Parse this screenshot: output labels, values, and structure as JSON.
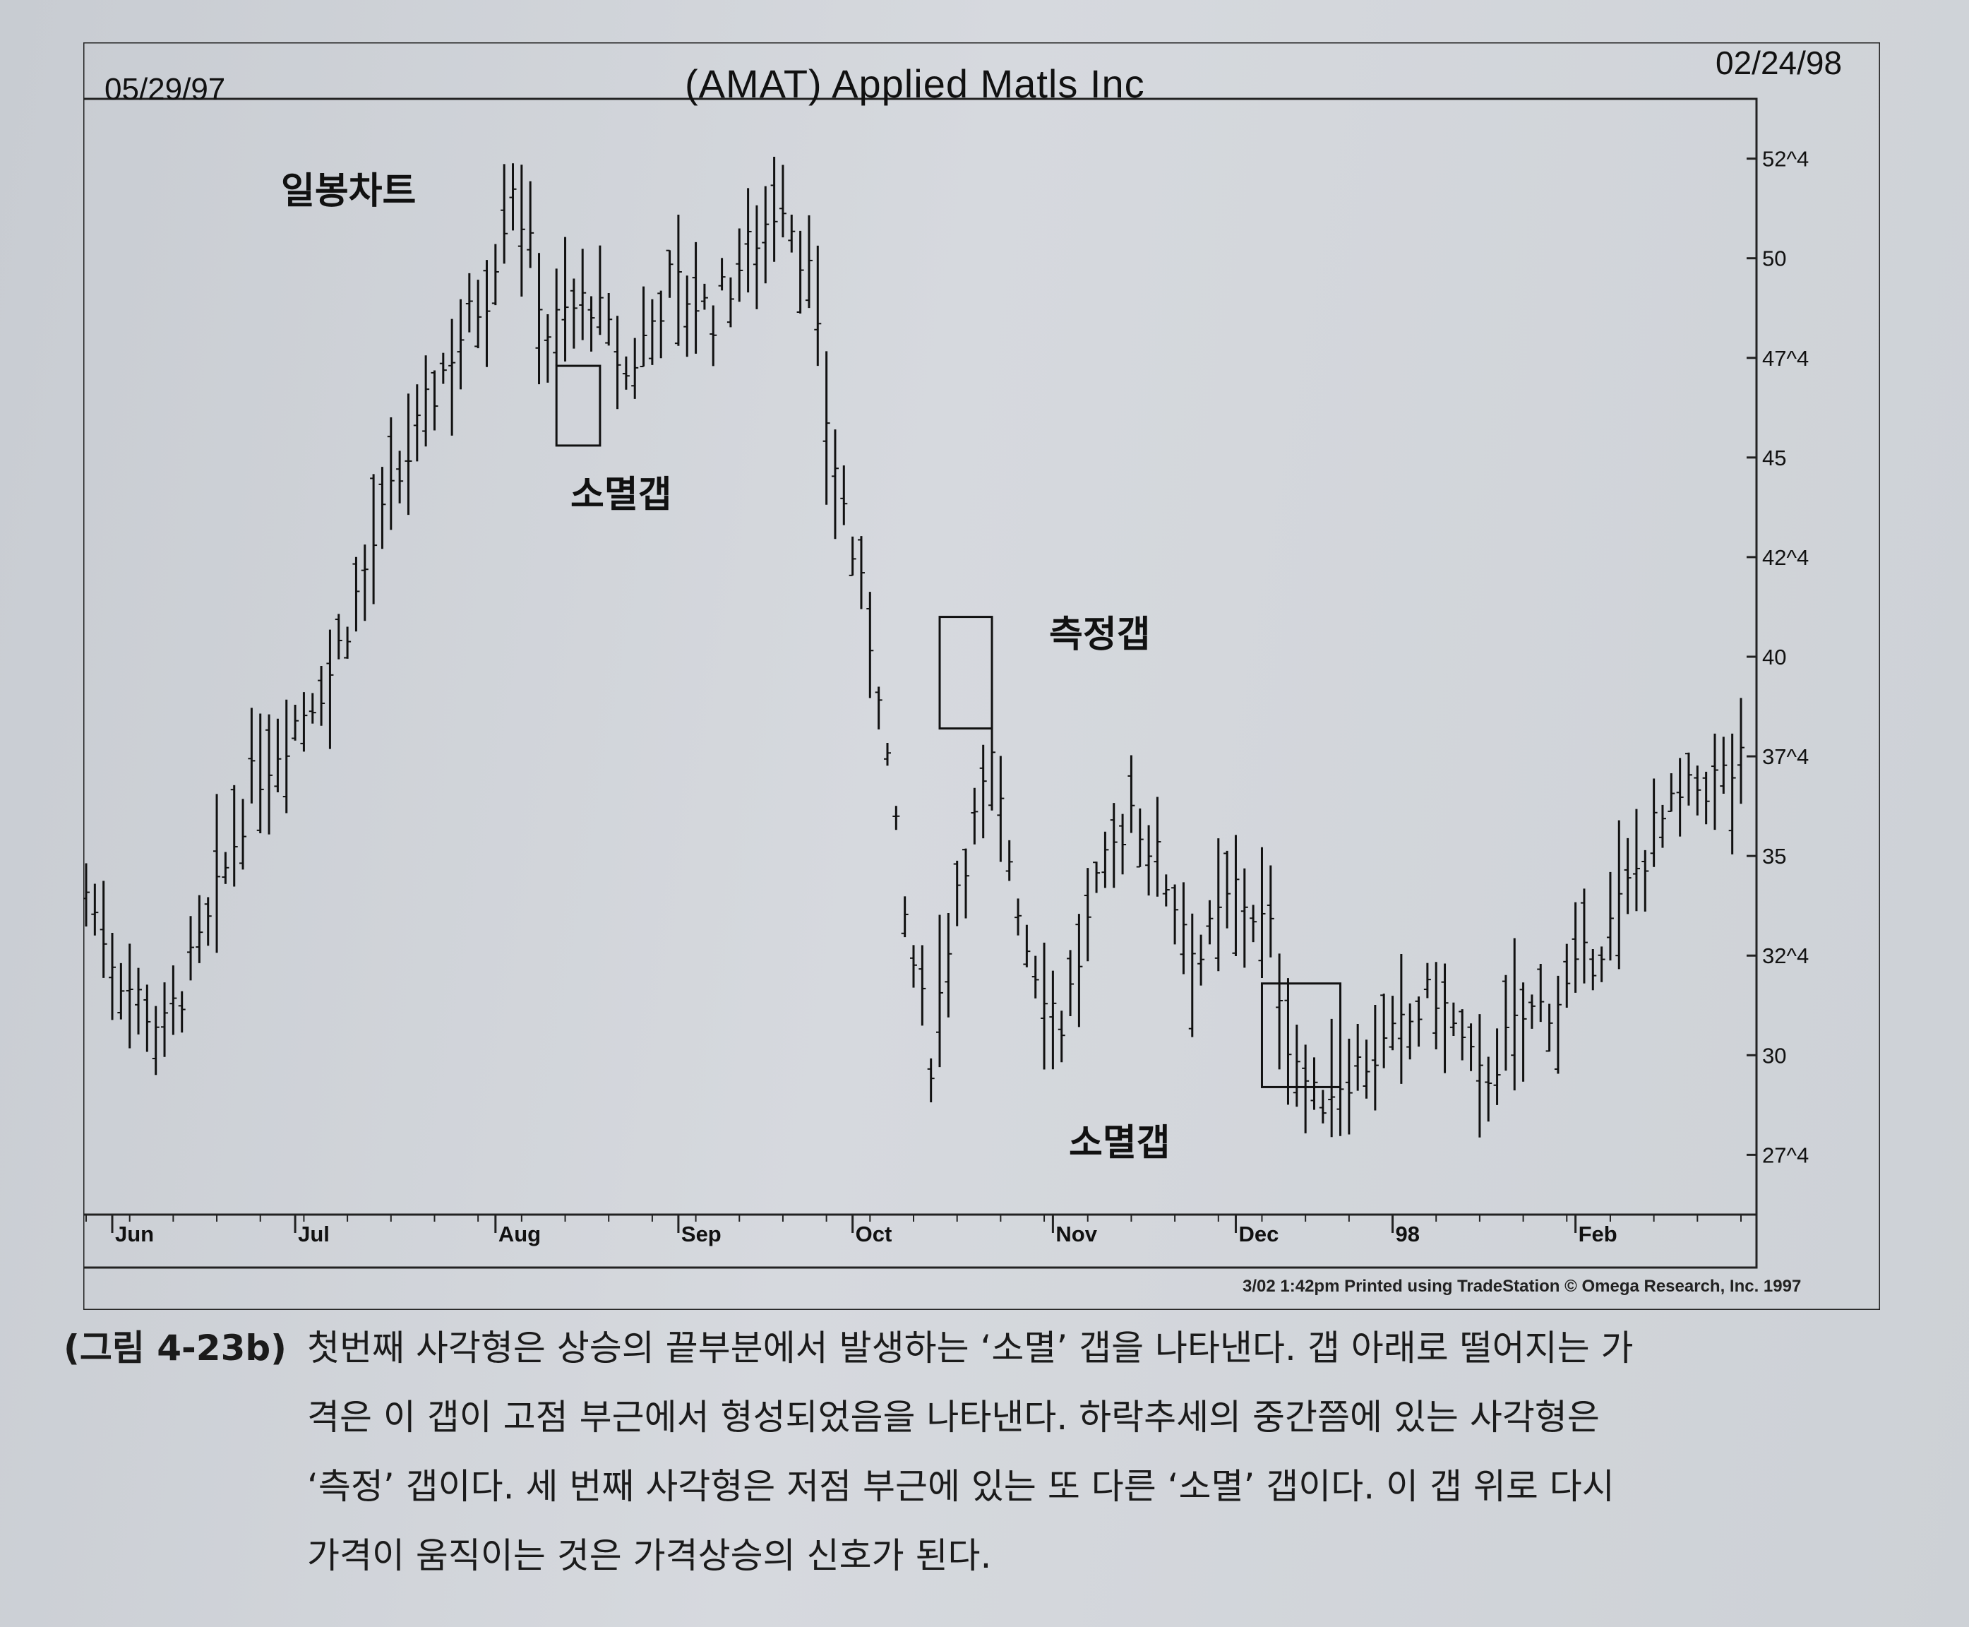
{
  "chart_data": {
    "type": "bar",
    "subtype": "OHLC daily bar chart",
    "title": "(AMAT) Applied Matls Inc",
    "start_date": "05/29/97",
    "end_date": "02/24/98",
    "chart_label": "일봉차트",
    "y_ticks": [
      "52^4",
      "50",
      "47^4",
      "45",
      "42^4",
      "40",
      "37^4",
      "35",
      "32^4",
      "30",
      "27^4"
    ],
    "y_tick_values": [
      52.5,
      50,
      47.5,
      45,
      42.5,
      40,
      37.5,
      35,
      32.5,
      30,
      27.5
    ],
    "ylim": [
      26,
      54
    ],
    "x_month_labels": [
      "Jun",
      "Jul",
      "Aug",
      "Sep",
      "Oct",
      "Nov",
      "Dec",
      "98",
      "Feb"
    ],
    "annotations": [
      {
        "text": "소멸갭",
        "box_price_range": [
          45.3,
          47.3
        ]
      },
      {
        "text": "측정갭",
        "box_price_range": [
          38.2,
          41.0
        ]
      },
      {
        "text": "소멸갭",
        "box_price_range": [
          29.2,
          31.8
        ]
      }
    ],
    "close_path": [
      [
        0,
        34.1
      ],
      [
        4,
        32.0
      ],
      [
        9,
        30.6
      ],
      [
        14,
        33.2
      ],
      [
        19,
        36.8
      ],
      [
        24,
        38.4
      ],
      [
        28,
        39.6
      ],
      [
        33,
        42.8
      ],
      [
        38,
        45.6
      ],
      [
        42,
        47.7
      ],
      [
        46,
        49.2
      ],
      [
        49,
        52.0
      ],
      [
        53,
        48.2
      ],
      [
        58,
        49.0
      ],
      [
        62,
        47.0
      ],
      [
        67,
        49.4
      ],
      [
        72,
        48.6
      ],
      [
        76,
        50.2
      ],
      [
        80,
        51.6
      ],
      [
        83,
        49.6
      ],
      [
        85,
        46.0
      ],
      [
        88,
        42.6
      ],
      [
        91,
        39.4
      ],
      [
        94,
        33.4
      ],
      [
        97,
        30.0
      ],
      [
        100,
        34.4
      ],
      [
        104,
        37.2
      ],
      [
        108,
        32.8
      ],
      [
        112,
        30.8
      ],
      [
        116,
        34.0
      ],
      [
        120,
        36.3
      ],
      [
        124,
        34.4
      ],
      [
        128,
        32.5
      ],
      [
        132,
        34.2
      ],
      [
        136,
        33.0
      ],
      [
        138,
        30.5
      ],
      [
        141,
        28.8
      ],
      [
        145,
        29.6
      ],
      [
        150,
        30.3
      ],
      [
        155,
        31.6
      ],
      [
        160,
        29.3
      ],
      [
        165,
        30.9
      ],
      [
        170,
        31.6
      ],
      [
        175,
        33.2
      ],
      [
        180,
        35.6
      ],
      [
        185,
        36.7
      ],
      [
        190,
        37.2
      ]
    ],
    "bar_count": 191
  },
  "footer": {
    "credit": "3/02  1:42pm Printed using TradeStation © Omega Research, Inc. 1997"
  },
  "caption": {
    "label": "(그림 4-23b)",
    "lines": [
      "첫번째 사각형은 상승의 끝부분에서 발생하는 ‘소멸’ 갭을 나타낸다. 갭 아래로 떨어지는 가",
      "격은 이 갭이 고점 부근에서 형성되었음을 나타낸다. 하락추세의 중간쯤에 있는 사각형은",
      "‘측정’ 갭이다. 세 번째 사각형은 저점 부근에 있는 또 다른 ‘소멸’ 갭이다. 이 갭 위로 다시",
      "가격이 움직이는 것은 가격상승의 신호가 된다."
    ]
  }
}
